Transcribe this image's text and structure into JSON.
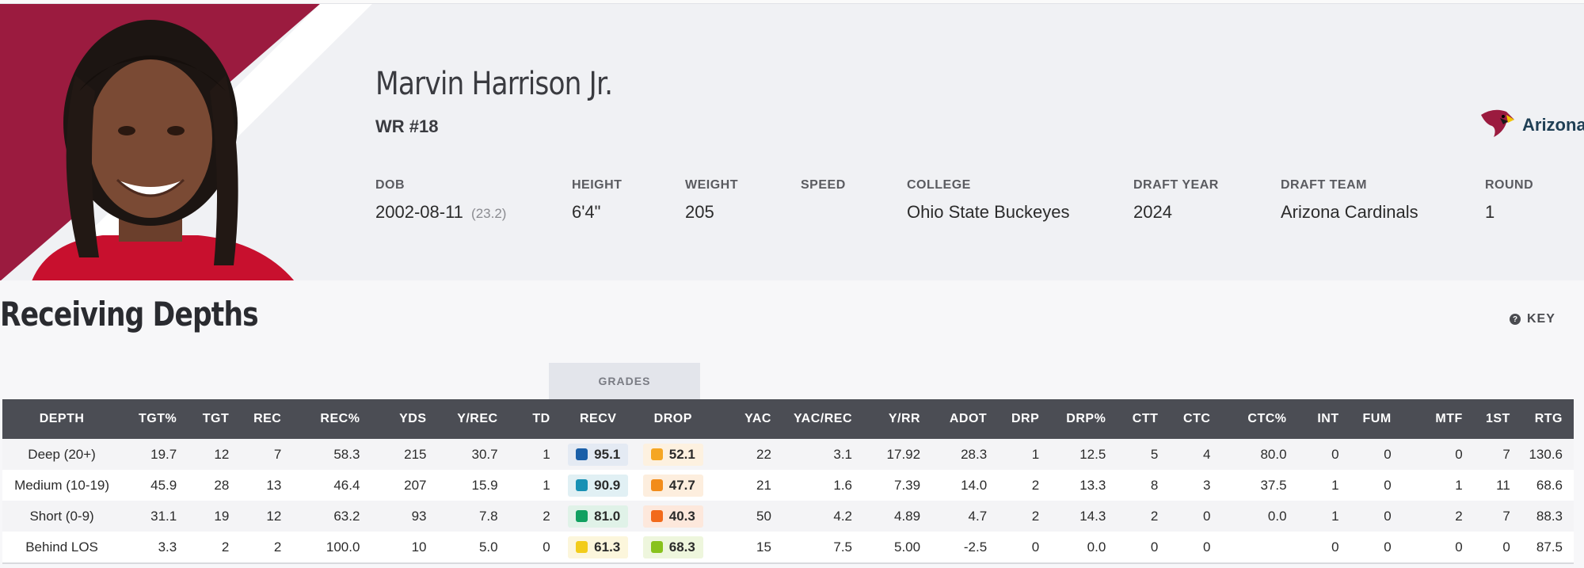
{
  "player": {
    "name": "Marvin Harrison Jr.",
    "position": "WR #18",
    "team_name": "Arizona"
  },
  "bio": [
    {
      "label": "DOB",
      "value": "2002-08-11",
      "extra": "(23.2)"
    },
    {
      "label": "HEIGHT",
      "value": "6'4\"",
      "extra": ""
    },
    {
      "label": "WEIGHT",
      "value": "205",
      "extra": ""
    },
    {
      "label": "SPEED",
      "value": "",
      "extra": ""
    },
    {
      "label": "COLLEGE",
      "value": "Ohio State Buckeyes",
      "extra": ""
    },
    {
      "label": "DRAFT YEAR",
      "value": "2024",
      "extra": ""
    },
    {
      "label": "DRAFT TEAM",
      "value": "Arizona Cardinals",
      "extra": ""
    },
    {
      "label": "ROUND",
      "value": "1",
      "extra": ""
    }
  ],
  "section": {
    "title": "Receiving Depths",
    "key_label": "KEY",
    "grades_label": "GRADES"
  },
  "colors": {
    "brand_red": "#9b1b3f",
    "header_bg": "#4b4d54"
  },
  "table": {
    "columns": [
      "DEPTH",
      "TGT%",
      "TGT",
      "REC",
      "REC%",
      "YDS",
      "Y/REC",
      "TD",
      "RECV",
      "DROP",
      "YAC",
      "YAC/REC",
      "Y/RR",
      "ADOT",
      "DRP",
      "DRP%",
      "CTT",
      "CTC",
      "CTC%",
      "INT",
      "FUM",
      "MTF",
      "1ST",
      "RTG"
    ],
    "rows": [
      {
        "depth": "Deep (20+)",
        "tgt_pct": "19.7",
        "tgt": "12",
        "rec": "7",
        "rec_pct": "58.3",
        "yds": "215",
        "y_rec": "30.7",
        "td": "1",
        "recv": "95.1",
        "recv_color": "#1a5fa8",
        "recv_bg": "#e4eaf3",
        "drop": "52.1",
        "drop_color": "#f5a623",
        "drop_bg": "#fdf1e0",
        "yac": "22",
        "yac_rec": "3.1",
        "y_rr": "17.92",
        "adot": "28.3",
        "drp": "1",
        "drp_pct": "12.5",
        "ctt": "5",
        "ctc": "4",
        "ctc_pct": "80.0",
        "int": "0",
        "fum": "0",
        "mtf": "0",
        "first": "7",
        "rtg": "130.6"
      },
      {
        "depth": "Medium (10-19)",
        "tgt_pct": "45.9",
        "tgt": "28",
        "rec": "13",
        "rec_pct": "46.4",
        "yds": "207",
        "y_rec": "15.9",
        "td": "1",
        "recv": "90.9",
        "recv_color": "#1891b4",
        "recv_bg": "#e1f0f4",
        "drop": "47.7",
        "drop_color": "#f28c1a",
        "drop_bg": "#fdeede",
        "yac": "21",
        "yac_rec": "1.6",
        "y_rr": "7.39",
        "adot": "14.0",
        "drp": "2",
        "drp_pct": "13.3",
        "ctt": "8",
        "ctc": "3",
        "ctc_pct": "37.5",
        "int": "1",
        "fum": "0",
        "mtf": "1",
        "first": "11",
        "rtg": "68.6"
      },
      {
        "depth": "Short (0-9)",
        "tgt_pct": "31.1",
        "tgt": "19",
        "rec": "12",
        "rec_pct": "63.2",
        "yds": "93",
        "y_rec": "7.8",
        "td": "2",
        "recv": "81.0",
        "recv_color": "#10a060",
        "recv_bg": "#e0f2e8",
        "drop": "40.3",
        "drop_color": "#f26a1b",
        "drop_bg": "#fde8dc",
        "yac": "50",
        "yac_rec": "4.2",
        "y_rr": "4.89",
        "adot": "4.7",
        "drp": "2",
        "drp_pct": "14.3",
        "ctt": "2",
        "ctc": "0",
        "ctc_pct": "0.0",
        "int": "1",
        "fum": "0",
        "mtf": "2",
        "first": "7",
        "rtg": "88.3"
      },
      {
        "depth": "Behind LOS",
        "tgt_pct": "3.3",
        "tgt": "2",
        "rec": "2",
        "rec_pct": "100.0",
        "yds": "10",
        "y_rec": "5.0",
        "td": "0",
        "recv": "61.3",
        "recv_color": "#f2cc1a",
        "recv_bg": "#fcf6dc",
        "drop": "68.3",
        "drop_color": "#88c21c",
        "drop_bg": "#eef6dd",
        "yac": "15",
        "yac_rec": "7.5",
        "y_rr": "5.00",
        "adot": "-2.5",
        "drp": "0",
        "drp_pct": "0.0",
        "ctt": "0",
        "ctc": "0",
        "ctc_pct": "",
        "int": "0",
        "fum": "0",
        "mtf": "0",
        "first": "0",
        "rtg": "87.5"
      }
    ]
  }
}
